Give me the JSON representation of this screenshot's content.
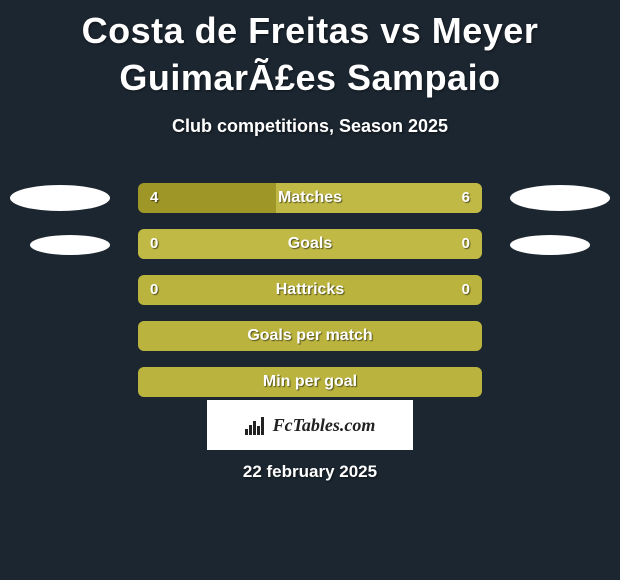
{
  "background_color": "#1c2630",
  "title": "Costa de Freitas vs Meyer GuimarÃ£es Sampaio",
  "title_fontsize": 36,
  "subtitle": "Club competitions, Season 2025",
  "subtitle_fontsize": 18,
  "bar_colors": {
    "dark": "#9e9627",
    "light": "#c0b945",
    "full": "#bab33d"
  },
  "rows": [
    {
      "label": "Matches",
      "left_value": "4",
      "right_value": "6",
      "left_pct": 40,
      "right_pct": 60,
      "left_color": "#9e9627",
      "right_color": "#c0b945",
      "show_ellipse": "big"
    },
    {
      "label": "Goals",
      "left_value": "0",
      "right_value": "0",
      "left_pct": 100,
      "right_pct": 0,
      "left_color": "#c0b945",
      "right_color": "#c0b945",
      "show_ellipse": "small"
    },
    {
      "label": "Hattricks",
      "left_value": "0",
      "right_value": "0",
      "left_pct": 100,
      "right_pct": 0,
      "left_color": "#bab33d",
      "right_color": "#bab33d",
      "show_ellipse": "none"
    },
    {
      "label": "Goals per match",
      "left_value": "",
      "right_value": "",
      "left_pct": 100,
      "right_pct": 0,
      "left_color": "#bab33d",
      "right_color": "#bab33d",
      "show_ellipse": "none"
    },
    {
      "label": "Min per goal",
      "left_value": "",
      "right_value": "",
      "left_pct": 100,
      "right_pct": 0,
      "left_color": "#bab33d",
      "right_color": "#bab33d",
      "show_ellipse": "none"
    }
  ],
  "brand": "FcTables.com",
  "date": "22 february 2025"
}
